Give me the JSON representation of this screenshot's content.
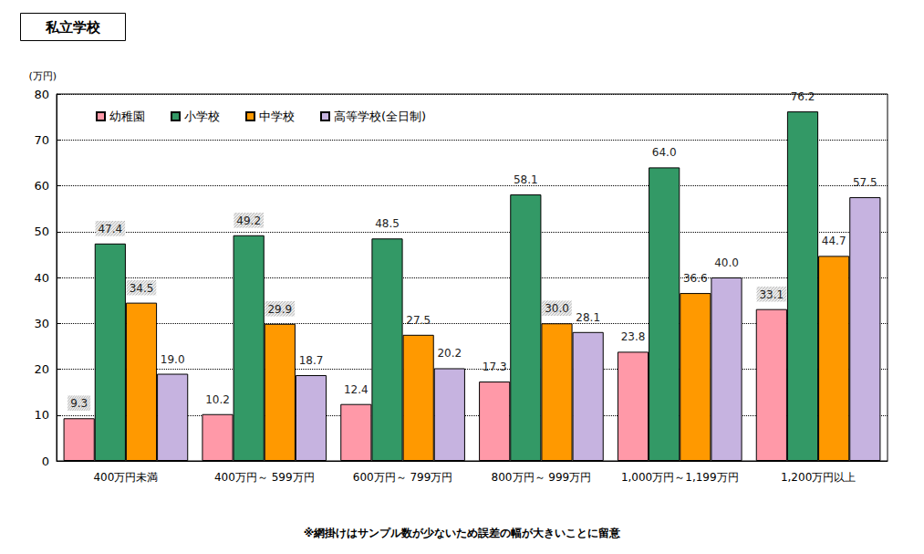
{
  "chart_data": {
    "type": "bar",
    "title": "私立学校",
    "y_label": "(万円)",
    "note": "※網掛けはサンプル数が少ないため誤差の幅が大きいことに留意",
    "categories": [
      "400万円未満",
      "400万円～ 599万円",
      "600万円～ 799万円",
      "800万円～ 999万円",
      "1,000万円～1,199万円",
      "1,200万円以上"
    ],
    "series": [
      {
        "name": "幼稚園",
        "color": "#ff99a8",
        "values": [
          9.3,
          10.2,
          12.4,
          17.3,
          23.8,
          33.1
        ],
        "value_labels": [
          "9.3",
          "10.2",
          "12.4",
          "17.3",
          "23.8",
          "33.1"
        ],
        "low_sample": [
          true,
          false,
          false,
          false,
          false,
          true
        ]
      },
      {
        "name": "小学校",
        "color": "#339966",
        "values": [
          47.4,
          49.2,
          48.5,
          58.1,
          64.0,
          76.2
        ],
        "value_labels": [
          "47.4",
          "49.2",
          "48.5",
          "58.1",
          "64.0",
          "76.2"
        ],
        "low_sample": [
          true,
          true,
          false,
          false,
          false,
          false
        ]
      },
      {
        "name": "中学校",
        "color": "#ff9900",
        "values": [
          34.5,
          29.9,
          27.5,
          30.0,
          36.6,
          44.7
        ],
        "value_labels": [
          "34.5",
          "29.9",
          "27.5",
          "30.0",
          "36.6",
          "44.7"
        ],
        "low_sample": [
          true,
          true,
          false,
          true,
          false,
          false
        ]
      },
      {
        "name": "高等学校(全日制)",
        "color": "#c6b3e0",
        "values": [
          19.0,
          18.7,
          20.2,
          28.1,
          40.0,
          57.5
        ],
        "value_labels": [
          "19.0",
          "18.7",
          "20.2",
          "28.1",
          "40.0",
          "57.5"
        ],
        "low_sample": [
          false,
          false,
          false,
          false,
          false,
          false
        ]
      }
    ],
    "ylim": [
      0,
      80
    ],
    "yticks": [
      0,
      10,
      20,
      30,
      40,
      50,
      60,
      70,
      80
    ],
    "grid": true,
    "data_labels": true,
    "legend": "upper left"
  }
}
